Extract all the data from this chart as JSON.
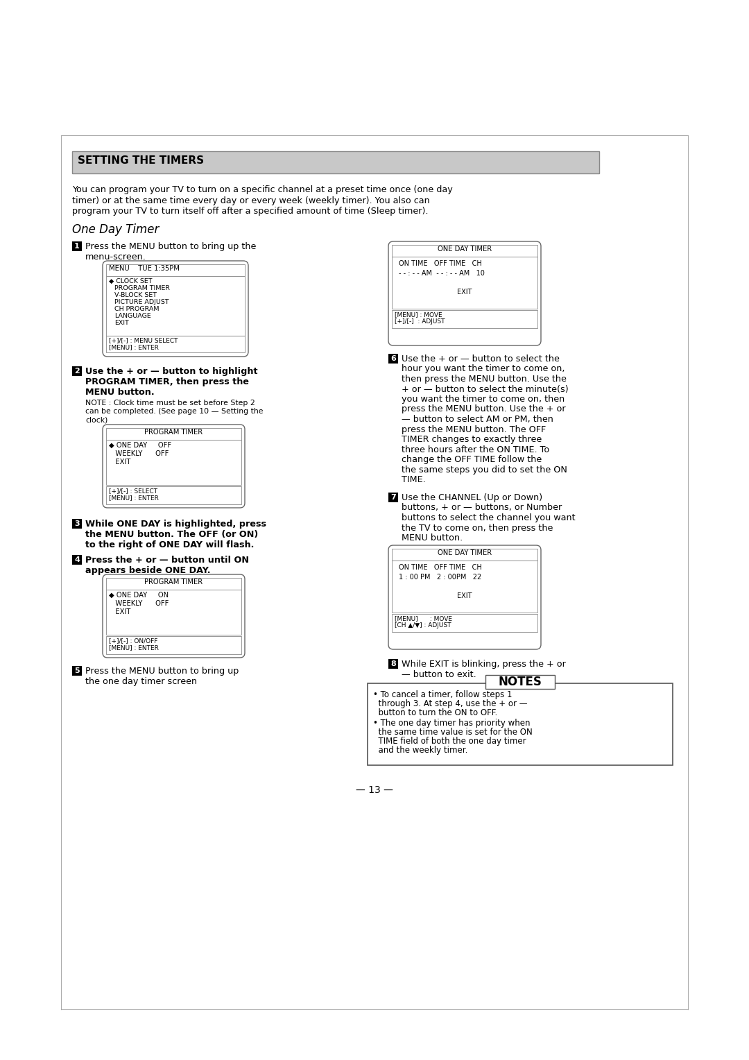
{
  "page_bg": "#ffffff",
  "title": "SETTING THE TIMERS",
  "title_bg": "#c8c8c8",
  "intro_lines": [
    "You can program your TV to turn on a specific channel at a preset time once (one day",
    "timer) or at the same time every day or every week (weekly timer). You also can",
    "program your TV to turn itself off after a specified amount of time (Sleep timer)."
  ],
  "section_title": "One Day Timer",
  "step1_text_line1": "Press the MENU button to bring up the",
  "step1_text_line2": "menu-screen.",
  "menu_title": "MENU    TUE 1:35PM",
  "menu_items_icon": "◆ CLOCK SET",
  "menu_items_rest": [
    "PROGRAM TIMER",
    "V-BLOCK SET",
    "PICTURE ADJUST",
    "CH PROGRAM",
    "LANGUAGE",
    "EXIT"
  ],
  "menu_bottom1": "[+]/[-] : MENU SELECT",
  "menu_bottom2": "[MENU] : ENTER",
  "step2_text_line1": "Use the + or — button to highlight",
  "step2_text_line2": "PROGRAM TIMER, then press the",
  "step2_text_line3": "MENU button.",
  "step2_note1": "NOTE : Clock time must be set before Step 2",
  "step2_note2": "can be completed. (See page 10 — Setting the",
  "step2_note3": "clock)",
  "pt1_title": "PROGRAM TIMER",
  "pt1_line1": "◆ ONE DAY     OFF",
  "pt1_line2": "   WEEKLY      OFF",
  "pt1_line3": "   EXIT",
  "pt1_bottom1": "[+]/[-] : SELECT",
  "pt1_bottom2": "[MENU] : ENTER",
  "step3_text_line1": "While ONE DAY is highlighted, press",
  "step3_text_line2": "the MENU button. The OFF (or ON)",
  "step3_text_line3": "to the right of ONE DAY will flash.",
  "step4_text_line1": "Press the + or — button until ON",
  "step4_text_line2": "appears beside ONE DAY.",
  "pt2_title": "PROGRAM TIMER",
  "pt2_line1": "◆ ONE DAY     ON",
  "pt2_line2": "   WEEKLY      OFF",
  "pt2_line3": "   EXIT",
  "pt2_bottom1": "[+]/[-] : ON/OFF",
  "pt2_bottom2": "[MENU] : ENTER",
  "step5_text_line1": "Press the MENU button to bring up",
  "step5_text_line2": "the one day timer screen",
  "odt1_title": "ONE DAY TIMER",
  "odt1_col": "ON TIME   OFF TIME   CH",
  "odt1_val": "- - : - - AM  - - : - - AM   10",
  "odt1_exit": "EXIT",
  "odt1_bot1": "[MENU] : MOVE",
  "odt1_bot2": "[+]/[-]  : ADJUST",
  "step6_lines": [
    "Use the + or — button to select the",
    "hour you want the timer to come on,",
    "then press the MENU button. Use the",
    "+ or — button to select the minute(s)",
    "you want the timer to come on, then",
    "press the MENU button. Use the + or",
    "— button to select AM or PM, then",
    "press the MENU button. The OFF",
    "TIMER changes to exactly three",
    "three hours after the ON TIME. To",
    "change the OFF TIME follow the",
    "the same steps you did to set the ON",
    "TIME."
  ],
  "step7_lines": [
    "Use the CHANNEL (Up or Down)",
    "buttons, + or — buttons, or Number",
    "buttons to select the channel you want",
    "the TV to come on, then press the",
    "MENU button."
  ],
  "odt2_title": "ONE DAY TIMER",
  "odt2_col": "ON TIME   OFF TIME   CH",
  "odt2_val": "1 : 00 PM   2 : 00PM   22",
  "odt2_exit": "EXIT",
  "odt2_bot1": "[MENU]      : MOVE",
  "odt2_bot2": "[CH ▲/▼] : ADJUST",
  "step8_line1": "While EXIT is blinking, press the + or",
  "step8_line2": "— button to exit.",
  "notes_title": "NOTES",
  "note1_lines": [
    "• To cancel a timer, follow steps 1",
    "  through 3. At step 4, use the + or —",
    "  button to turn the ON to OFF."
  ],
  "note2_lines": [
    "• The one day timer has priority when",
    "  the same time value is set for the ON",
    "  TIME field of both the one day timer",
    "  and the weekly timer."
  ],
  "page_number": "— 13 —"
}
